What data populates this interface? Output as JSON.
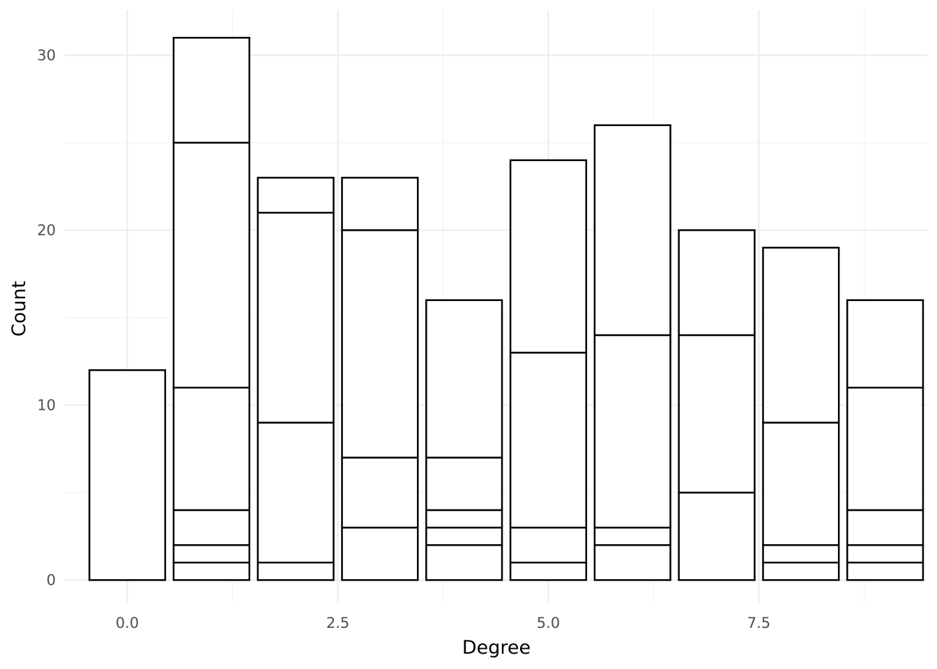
{
  "chart_data": {
    "type": "bar",
    "stacked": true,
    "xlabel": "Degree",
    "ylabel": "Count",
    "x": [
      0,
      1,
      2,
      3,
      4,
      5,
      6,
      7,
      8,
      9
    ],
    "xlim": [
      -0.75,
      9.5
    ],
    "ylim": [
      -1.3,
      32.6
    ],
    "x_ticks": [
      0.0,
      2.5,
      5.0,
      7.5
    ],
    "x_tick_labels": [
      "0.0",
      "2.5",
      "5.0",
      "7.5"
    ],
    "y_ticks": [
      0,
      10,
      20,
      30
    ],
    "y_tick_labels": [
      "0",
      "10",
      "20",
      "30"
    ],
    "grid": true,
    "fill_color": "#ffffff",
    "outline_color": "#000000",
    "stack_boundaries": [
      [
        12
      ],
      [
        1,
        2,
        4,
        11,
        25,
        31
      ],
      [
        1,
        9,
        21,
        23
      ],
      [
        3,
        7,
        20,
        23
      ],
      [
        2,
        3,
        4,
        7,
        16
      ],
      [
        1,
        3,
        13,
        24
      ],
      [
        2,
        3,
        14,
        26
      ],
      [
        5,
        14,
        20
      ],
      [
        1,
        2,
        9,
        19
      ],
      [
        1,
        2,
        4,
        11,
        16
      ]
    ]
  }
}
